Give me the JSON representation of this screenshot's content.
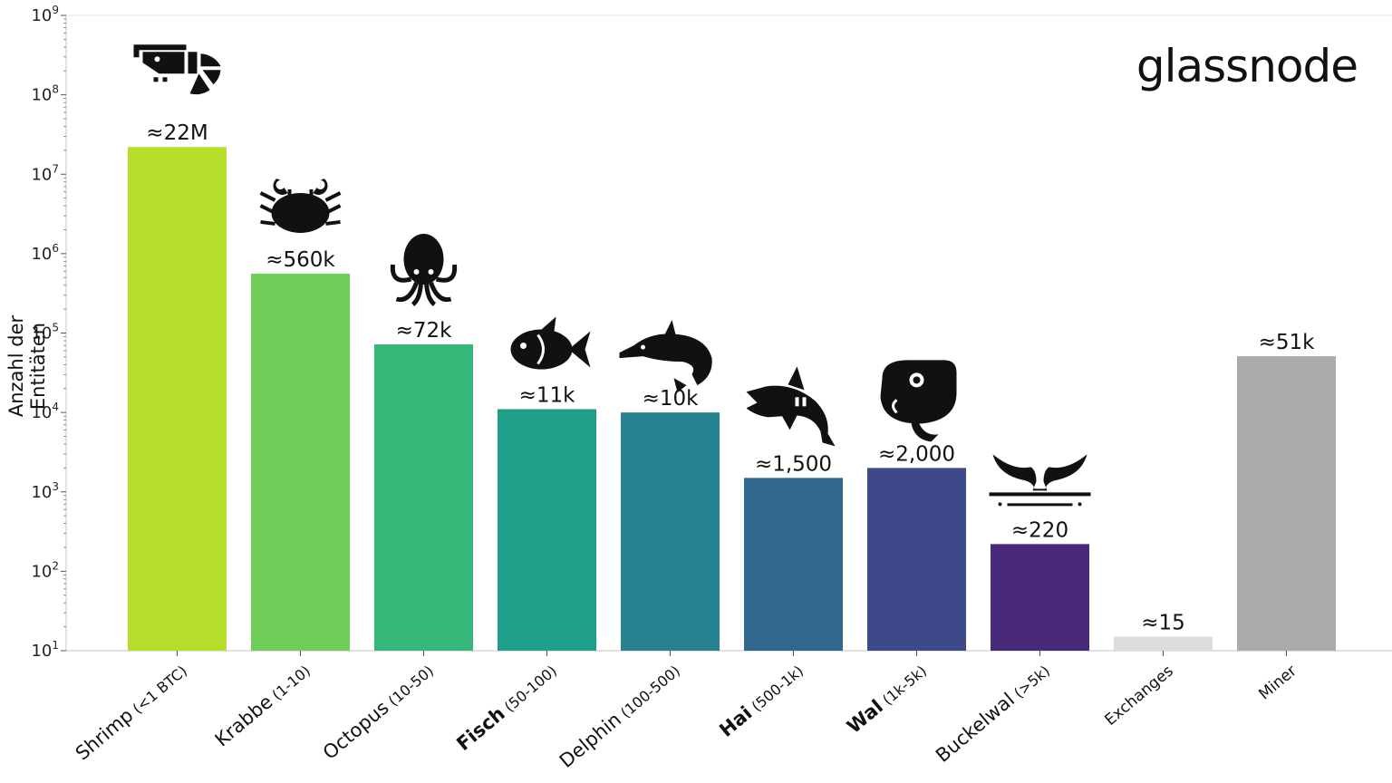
{
  "brand": "glassnode",
  "chart_data": {
    "type": "bar",
    "ylabel": "Anzahl der Entitäten",
    "yscale": "log",
    "ylim": [
      10,
      1000000000
    ],
    "yticks": [
      {
        "base": "10",
        "exp": "1"
      },
      {
        "base": "10",
        "exp": "2"
      },
      {
        "base": "10",
        "exp": "3"
      },
      {
        "base": "10",
        "exp": "4"
      },
      {
        "base": "10",
        "exp": "5"
      },
      {
        "base": "10",
        "exp": "6"
      },
      {
        "base": "10",
        "exp": "7"
      },
      {
        "base": "10",
        "exp": "8"
      },
      {
        "base": "10",
        "exp": "9"
      }
    ],
    "categories": [
      {
        "name": "Shrimp",
        "range": "(<1 BTC)"
      },
      {
        "name": "Krabbe",
        "range": "(1-10)"
      },
      {
        "name": "Octopus",
        "range": "(10-50)"
      },
      {
        "name": "Fisch",
        "range": "(50-100)"
      },
      {
        "name": "Delphin",
        "range": "(100-500)"
      },
      {
        "name": "Hai",
        "range": "(500-1k)"
      },
      {
        "name": "Wal",
        "range": "(1k-5k)"
      },
      {
        "name": "Buckelwal",
        "range": "(>5k)"
      },
      {
        "name": "Exchanges",
        "range": ""
      },
      {
        "name": "Miner",
        "range": ""
      }
    ],
    "values": [
      22000000,
      560000,
      72000,
      11000,
      10000,
      1500,
      2000,
      220,
      15,
      51000
    ],
    "labels": [
      "≈22M",
      "≈560k",
      "≈72k",
      "≈11k",
      "≈10k",
      "≈1,500",
      "≈2,000",
      "≈220",
      "≈15",
      "≈51k"
    ],
    "colors": [
      "#b5de2b",
      "#6ece58",
      "#35b779",
      "#1f9e89",
      "#26828e",
      "#31688e",
      "#3e4989",
      "#482878",
      "#dddddd",
      "#aaaaaa"
    ],
    "icons": [
      "shrimp-icon",
      "crab-icon",
      "octopus-icon",
      "fish-icon",
      "dolphin-icon",
      "shark-icon",
      "whale-icon",
      "humpback-tail-icon",
      "",
      ""
    ],
    "grid": false,
    "legend": "none"
  }
}
